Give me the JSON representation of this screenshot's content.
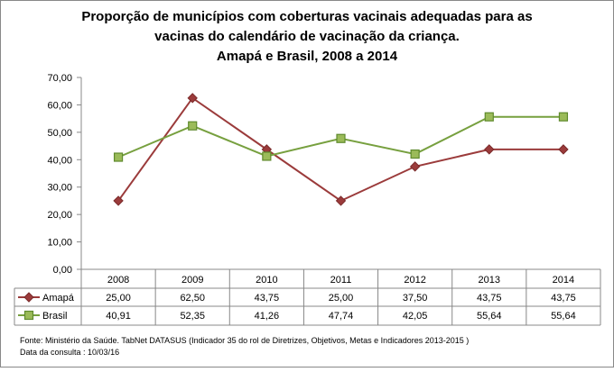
{
  "chart_data": {
    "type": "line",
    "title": [
      "Proporção de municípios com coberturas vacinais adequadas para as",
      "vacinas do calendário de vacinação da criança.",
      "Amapá e Brasil, 2008 a 2014"
    ],
    "categories": [
      "2008",
      "2009",
      "2010",
      "2011",
      "2012",
      "2013",
      "2014"
    ],
    "series": [
      {
        "name": "Amapá",
        "values": [
          25.0,
          62.5,
          43.75,
          25.0,
          37.5,
          43.75,
          43.75
        ],
        "labels": [
          "25,00",
          "62,50",
          "43,75",
          "25,00",
          "37,50",
          "43,75",
          "43,75"
        ],
        "color": "#9b3b3b",
        "marker": "diamond"
      },
      {
        "name": "Brasil",
        "values": [
          40.91,
          52.35,
          41.26,
          47.74,
          42.05,
          55.64,
          55.64
        ],
        "labels": [
          "40,91",
          "52,35",
          "41,26",
          "47,74",
          "42,05",
          "55,64",
          "55,64"
        ],
        "color": "#77a03f",
        "marker": "square"
      }
    ],
    "ylim": [
      0,
      70
    ],
    "yticks": [
      "0,00",
      "10,00",
      "20,00",
      "30,00",
      "40,00",
      "50,00",
      "60,00",
      "70,00"
    ],
    "grid": false,
    "legend": "data-table",
    "source": "Fonte: Ministério da Saúde. TabNet DATASUS (Indicador 35 do rol de Diretrizes, Objetivos, Metas e Indicadores 2013-2015 )",
    "consult_date": "Data da consulta : 10/03/16"
  }
}
